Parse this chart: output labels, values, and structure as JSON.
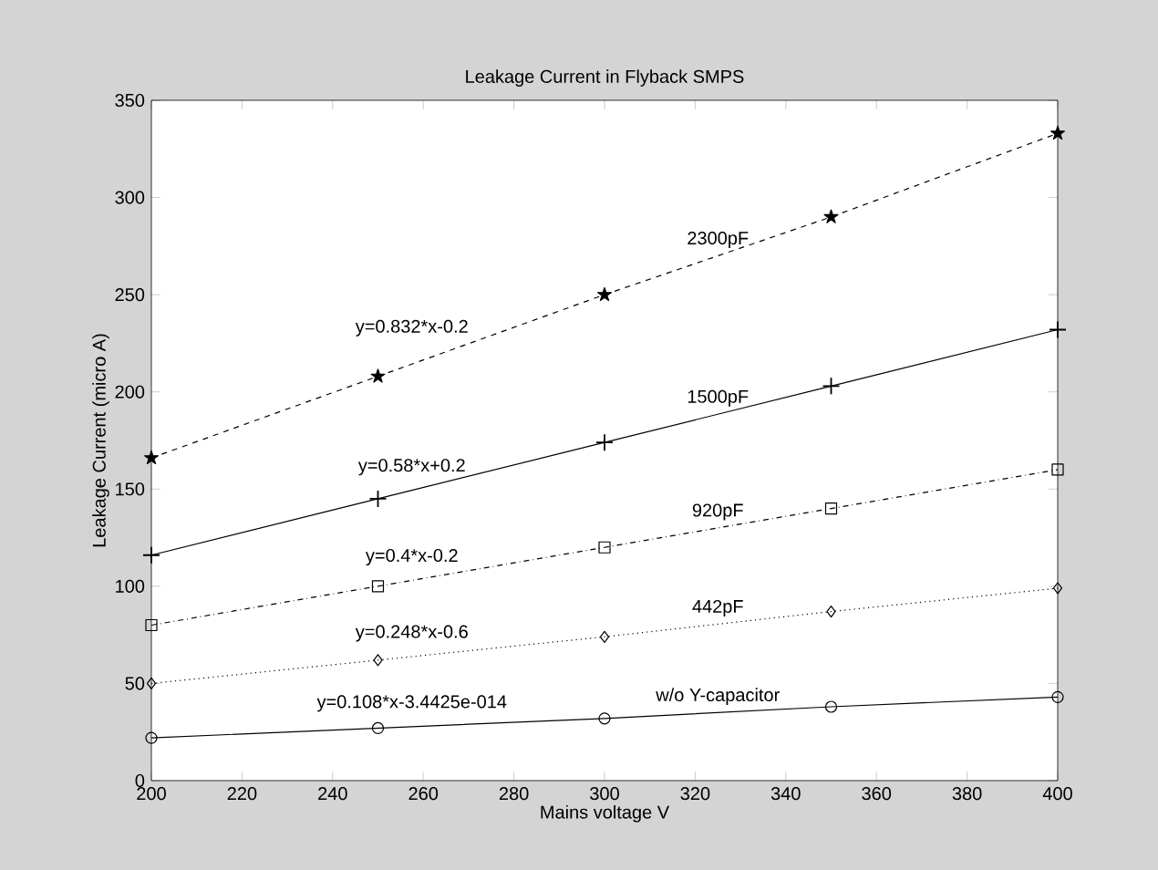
{
  "chart_data": {
    "type": "line",
    "title": "Leakage Current in Flyback SMPS",
    "xlabel": "Mains voltage V",
    "ylabel": "Leakage Current (micro A)",
    "x": [
      200,
      250,
      300,
      350,
      400
    ],
    "series": [
      {
        "name": "2300pF",
        "color": "#000000",
        "marker": "star",
        "line_style": "dashed",
        "values": [
          166,
          208,
          250,
          290,
          333
        ]
      },
      {
        "name": "1500pF",
        "color": "#000000",
        "marker": "cross",
        "line_style": "solid",
        "values": [
          116,
          145,
          174,
          203,
          232
        ]
      },
      {
        "name": "920pF",
        "color": "#000000",
        "marker": "square",
        "line_style": "dashdot",
        "values": [
          80,
          100,
          120,
          140,
          160
        ]
      },
      {
        "name": "442pF",
        "color": "#000000",
        "marker": "diamond",
        "line_style": "dotted",
        "values": [
          50,
          62,
          74,
          87,
          99
        ]
      },
      {
        "name": "w/o Y-capacitor",
        "color": "#000000",
        "marker": "circle",
        "line_style": "solid",
        "values": [
          22,
          27,
          32,
          38,
          43
        ]
      }
    ],
    "annotations": [
      "y=0.832*x-0.2",
      "y=0.58*x+0.2",
      "y=0.4*x-0.2",
      "y=0.248*x-0.6",
      "y=0.108*x-3.4425e-014"
    ],
    "xlim": [
      200,
      400
    ],
    "ylim": [
      0,
      350
    ],
    "xticks": [
      200,
      220,
      240,
      260,
      280,
      300,
      320,
      340,
      360,
      380,
      400
    ],
    "yticks": [
      0,
      50,
      100,
      150,
      200,
      250,
      300,
      350
    ],
    "grid": false,
    "legend": false
  }
}
